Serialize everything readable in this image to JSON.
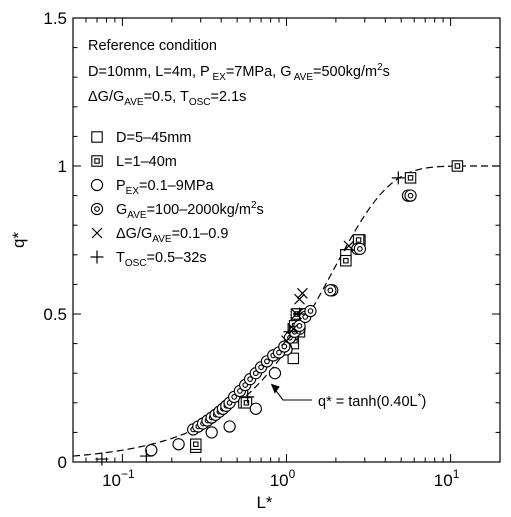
{
  "chart_data": {
    "type": "scatter",
    "xscale": "log",
    "xlim": [
      0.05,
      20
    ],
    "ylim": [
      0,
      1.5
    ],
    "xlabel": "L*",
    "ylabel": "q*",
    "x_ticks": [
      {
        "value": 0.1,
        "base": "10",
        "exp": "−1"
      },
      {
        "value": 1,
        "base": "10",
        "exp": "0"
      },
      {
        "value": 10,
        "base": "10",
        "exp": "1"
      }
    ],
    "y_ticks": [
      {
        "value": 0,
        "label": "0"
      },
      {
        "value": 0.5,
        "label": "0.5"
      },
      {
        "value": 1,
        "label": "1"
      },
      {
        "value": 1.5,
        "label": "1.5"
      }
    ],
    "reference_title": "Reference condition",
    "reference_lines": [
      [
        [
          "D=10mm, L=4m, P",
          ""
        ],
        [
          " EX",
          "sub"
        ],
        [
          "=7MPa, G",
          ""
        ],
        [
          " AVE",
          "sub"
        ],
        [
          "=500kg/m",
          ""
        ],
        [
          "2",
          "sup"
        ],
        [
          "s",
          ""
        ]
      ],
      [
        [
          "ΔG/G",
          ""
        ],
        [
          "AVE",
          "sub"
        ],
        [
          "=0.5, T",
          ""
        ],
        [
          "OSC",
          "sub"
        ],
        [
          "=2.1s",
          ""
        ]
      ]
    ],
    "series": [
      {
        "label": [
          [
            "D=5–45mm",
            ""
          ]
        ],
        "marker": "square",
        "points": [
          [
            0.28,
            0.05
          ],
          [
            0.55,
            0.2
          ],
          [
            1.1,
            0.4
          ],
          [
            1.1,
            0.45
          ],
          [
            1.1,
            0.35
          ],
          [
            1.15,
            0.48
          ],
          [
            1.2,
            0.5
          ],
          [
            2.3,
            0.7
          ],
          [
            2.8,
            0.75
          ]
        ]
      },
      {
        "label": [
          [
            "L=1–40m",
            ""
          ]
        ],
        "marker": "square-dot",
        "points": [
          [
            0.28,
            0.06
          ],
          [
            0.57,
            0.2
          ],
          [
            1.08,
            0.42
          ],
          [
            1.12,
            0.46
          ],
          [
            1.15,
            0.5
          ],
          [
            1.2,
            0.44
          ],
          [
            2.3,
            0.68
          ],
          [
            2.75,
            0.75
          ],
          [
            5.7,
            0.96
          ],
          [
            11,
            1.0
          ]
        ]
      },
      {
        "label": [
          [
            "P",
            ""
          ],
          [
            "EX",
            "sub"
          ],
          [
            "=0.1–9MPa",
            ""
          ]
        ],
        "marker": "circle",
        "points": [
          [
            0.15,
            0.04
          ],
          [
            0.22,
            0.06
          ],
          [
            0.35,
            0.1
          ],
          [
            0.45,
            0.12
          ],
          [
            0.65,
            0.18
          ],
          [
            0.85,
            0.3
          ],
          [
            1.0,
            0.38
          ],
          [
            1.1,
            0.43
          ],
          [
            1.2,
            0.45
          ],
          [
            1.3,
            0.5
          ],
          [
            1.9,
            0.58
          ],
          [
            2.7,
            0.72
          ],
          [
            5.5,
            0.9
          ]
        ]
      },
      {
        "label": [
          [
            "G",
            ""
          ],
          [
            "AVE",
            "sub"
          ],
          [
            "=100–2000kg/m",
            ""
          ],
          [
            "2",
            "sup"
          ],
          [
            "s",
            ""
          ]
        ],
        "marker": "circle-dot",
        "points": [
          [
            0.27,
            0.11
          ],
          [
            0.29,
            0.12
          ],
          [
            0.31,
            0.13
          ],
          [
            0.33,
            0.14
          ],
          [
            0.35,
            0.15
          ],
          [
            0.37,
            0.16
          ],
          [
            0.39,
            0.17
          ],
          [
            0.41,
            0.18
          ],
          [
            0.43,
            0.19
          ],
          [
            0.45,
            0.2
          ],
          [
            0.48,
            0.22
          ],
          [
            0.52,
            0.24
          ],
          [
            0.56,
            0.26
          ],
          [
            0.6,
            0.28
          ],
          [
            0.65,
            0.3
          ],
          [
            0.7,
            0.32
          ],
          [
            0.76,
            0.34
          ],
          [
            0.83,
            0.36
          ],
          [
            0.9,
            0.37
          ],
          [
            0.97,
            0.39
          ],
          [
            1.05,
            0.42
          ],
          [
            1.12,
            0.44
          ],
          [
            1.2,
            0.46
          ],
          [
            1.3,
            0.49
          ],
          [
            1.4,
            0.51
          ],
          [
            1.85,
            0.58
          ],
          [
            2.8,
            0.72
          ],
          [
            5.7,
            0.9
          ]
        ]
      },
      {
        "label": [
          [
            "ΔG/G",
            ""
          ],
          [
            "AVE",
            "sub"
          ],
          [
            "=0.1–0.9",
            ""
          ]
        ],
        "marker": "cross",
        "points": [
          [
            1.0,
            0.41
          ],
          [
            1.1,
            0.45
          ],
          [
            1.15,
            0.5
          ],
          [
            1.2,
            0.55
          ],
          [
            1.25,
            0.57
          ],
          [
            2.4,
            0.73
          ]
        ]
      },
      {
        "label": [
          [
            "T",
            ""
          ],
          [
            "OSC",
            "sub"
          ],
          [
            "=0.5–32s",
            ""
          ]
        ],
        "marker": "plus",
        "points": [
          [
            0.075,
            0.01
          ],
          [
            0.14,
            0.02
          ],
          [
            0.58,
            0.22
          ],
          [
            1.05,
            0.44
          ],
          [
            1.2,
            0.5
          ],
          [
            4.8,
            0.96
          ]
        ]
      }
    ],
    "curve": {
      "coefficient": 0.4,
      "label": [
        [
          "q* = tanh(0.40L",
          ""
        ],
        [
          "*",
          "sup"
        ],
        [
          ")",
          ""
        ]
      ]
    }
  }
}
